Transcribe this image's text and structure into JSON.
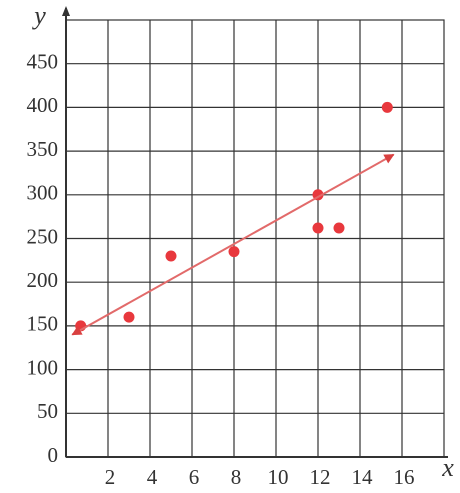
{
  "chart_data": {
    "type": "scatter",
    "x_label": "x",
    "y_label": "y",
    "xlim": [
      0,
      18
    ],
    "ylim": [
      0,
      500
    ],
    "xticks": [
      2,
      4,
      6,
      8,
      10,
      12,
      14,
      16
    ],
    "yticks": [
      0,
      50,
      100,
      150,
      200,
      250,
      300,
      350,
      400,
      450
    ],
    "grid": true,
    "series": [
      {
        "type": "scatter",
        "color": "#e8383d",
        "x": [
          0.7,
          3,
          5,
          8,
          12,
          12,
          13,
          15.3
        ],
        "values": [
          150,
          160,
          230,
          235,
          300,
          262,
          262,
          400
        ]
      },
      {
        "type": "line",
        "color": "#e26a6a",
        "arrows": true,
        "x": [
          0.3,
          15.6
        ],
        "values": [
          140,
          346
        ]
      }
    ]
  }
}
